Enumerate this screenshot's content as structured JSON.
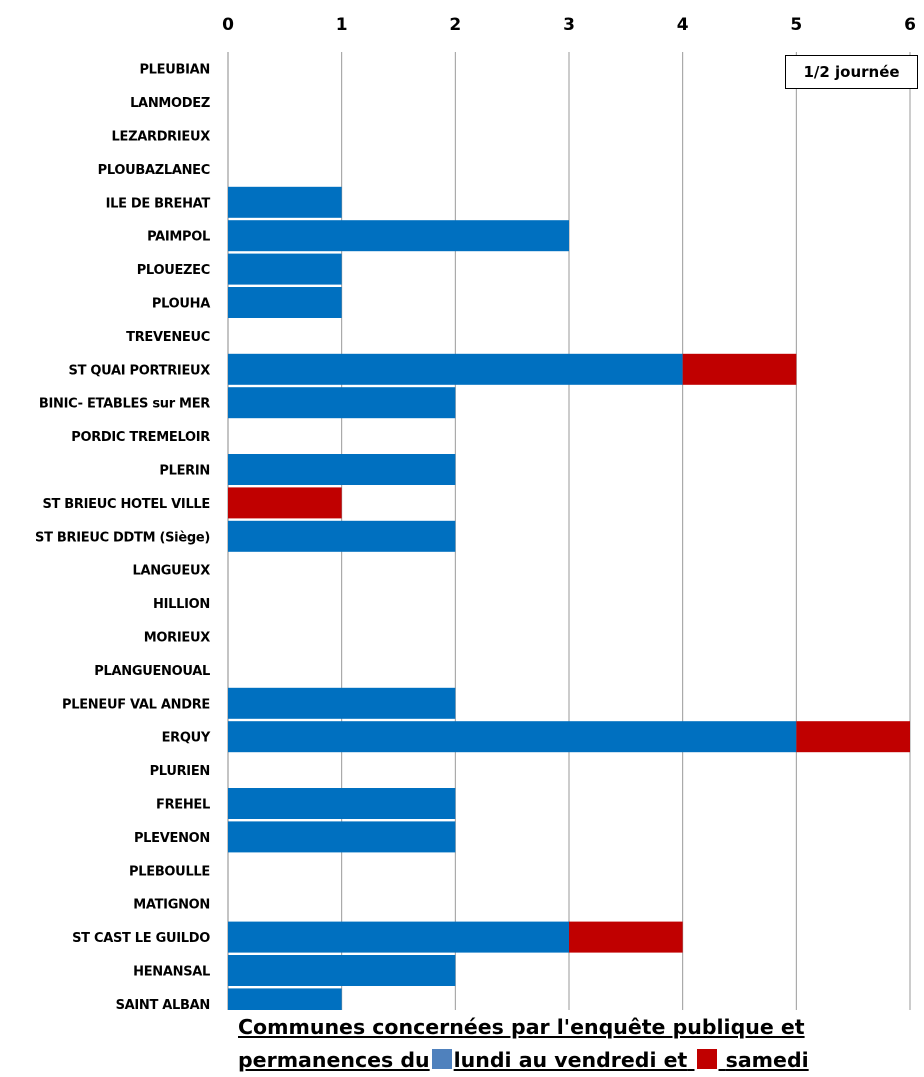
{
  "chart_data": {
    "type": "bar",
    "orientation": "horizontal",
    "stacked": true,
    "categories": [
      "PLEUBIAN",
      "LANMODEZ",
      "LEZARDRIEUX",
      "PLOUBAZLANEC",
      "ILE DE BREHAT",
      "PAIMPOL",
      "PLOUEZEC",
      "PLOUHA",
      "TREVENEUC",
      "ST QUAI PORTRIEUX",
      "BINIC- ETABLES sur MER",
      "PORDIC TREMELOIR",
      "PLERIN",
      "ST BRIEUC HOTEL VILLE",
      "ST BRIEUC DDTM (Siège)",
      "LANGUEUX",
      "HILLION",
      "MORIEUX",
      "PLANGUENOUAL",
      "PLENEUF VAL ANDRE",
      "ERQUY",
      "PLURIEN",
      "FREHEL",
      "PLEVENON",
      "PLEBOULLE",
      "MATIGNON",
      "ST CAST LE GUILDO",
      "HENANSAL",
      "SAINT ALBAN"
    ],
    "series": [
      {
        "name": "lundi au vendredi",
        "color": "#0070c0",
        "values": [
          0,
          0,
          0,
          0,
          1,
          3,
          1,
          1,
          0,
          4,
          2,
          0,
          2,
          0,
          2,
          0,
          0,
          0,
          0,
          2,
          5,
          0,
          2,
          2,
          0,
          0,
          3,
          2,
          1
        ]
      },
      {
        "name": "samedi",
        "color": "#c00000",
        "values": [
          0,
          0,
          0,
          0,
          0,
          0,
          0,
          0,
          0,
          1,
          0,
          0,
          0,
          1,
          0,
          0,
          0,
          0,
          0,
          0,
          1,
          0,
          0,
          0,
          0,
          0,
          1,
          0,
          0
        ]
      }
    ],
    "xlim": [
      0,
      6
    ],
    "xticks": [
      "0",
      "1",
      "2",
      "3",
      "4",
      "5",
      "6"
    ],
    "xaxis_position": "top",
    "grid": true,
    "unit_label": "1/2 journée"
  },
  "caption": {
    "line1": "Communes concernées par l'enquête publique et",
    "line2_prefix": "permanences du",
    "line2_middle": "lundi au vendredi et",
    "line2_suffix": "samedi",
    "swatch_blue": "#4f81bd",
    "swatch_red": "#c00000"
  }
}
